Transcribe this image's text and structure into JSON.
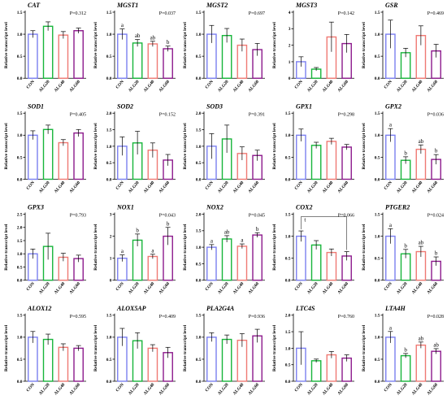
{
  "colors": {
    "CON": "#7b7ff0",
    "ALG20": "#17b53a",
    "ALG40": "#ef7a74",
    "ALG60": "#8c1a8c"
  },
  "chart_data": [
    {
      "type": "bar",
      "title": "CAT",
      "pvalue": "P=0.312",
      "ylabel": "Relative transcript level",
      "categories": [
        "CON",
        "ALG20",
        "ALG40",
        "ALG60"
      ],
      "values": [
        1.0,
        1.18,
        0.98,
        1.08
      ],
      "errors": [
        0.08,
        0.1,
        0.08,
        0.06
      ],
      "ylim": [
        0,
        1.5
      ],
      "yticks": [
        "0.0",
        "0.5",
        "1.0",
        "1.5"
      ],
      "letters": [
        "",
        "",
        "",
        ""
      ]
    },
    {
      "type": "bar",
      "title": "MGST1",
      "pvalue": "P=0.037",
      "ylabel": "Relative transcript level",
      "categories": [
        "CON",
        "ALG20",
        "ALG40",
        "ALG60"
      ],
      "values": [
        1.0,
        0.8,
        0.78,
        0.67
      ],
      "errors": [
        0.12,
        0.08,
        0.06,
        0.06
      ],
      "ylim": [
        0,
        1.5
      ],
      "yticks": [
        "0.0",
        "0.5",
        "1.0",
        "1.5"
      ],
      "letters": [
        "a",
        "ab",
        "ab",
        "b"
      ]
    },
    {
      "type": "bar",
      "title": "MGST2",
      "pvalue": "P=0.697",
      "ylabel": "Relative transcript level",
      "categories": [
        "CON",
        "ALG20",
        "ALG40",
        "ALG60"
      ],
      "values": [
        1.0,
        0.97,
        0.75,
        0.65
      ],
      "errors": [
        0.2,
        0.16,
        0.14,
        0.14
      ],
      "ylim": [
        0,
        1.5
      ],
      "yticks": [
        "0.0",
        "0.5",
        "1.0",
        "1.5"
      ],
      "letters": [
        "",
        "",
        "",
        ""
      ]
    },
    {
      "type": "bar",
      "title": "MGST3",
      "pvalue": "P=0.142",
      "ylabel": "Relative transcript level",
      "categories": [
        "CON",
        "ALG20",
        "ALG40",
        "ALG60"
      ],
      "values": [
        1.0,
        0.55,
        2.5,
        2.1
      ],
      "errors": [
        0.3,
        0.1,
        0.9,
        0.55
      ],
      "ylim": [
        0,
        4
      ],
      "yticks": [
        "0",
        "1",
        "2",
        "3",
        "4"
      ],
      "letters": [
        "",
        "",
        "",
        ""
      ]
    },
    {
      "type": "bar",
      "title": "GSR",
      "pvalue": "P=0.469",
      "ylabel": "Relative transcript level",
      "categories": [
        "CON",
        "ALG20",
        "ALG40",
        "ALG60"
      ],
      "values": [
        1.0,
        0.58,
        0.97,
        0.62
      ],
      "errors": [
        0.32,
        0.1,
        0.22,
        0.15
      ],
      "ylim": [
        0,
        1.5
      ],
      "yticks": [
        "0.0",
        "0.5",
        "1.0",
        "1.5"
      ],
      "letters": [
        "",
        "",
        "",
        ""
      ]
    },
    {
      "type": "bar",
      "title": "SOD1",
      "pvalue": "P=0.405",
      "ylabel": "Relative transcript level",
      "categories": [
        "CON",
        "ALG20",
        "ALG40",
        "ALG60"
      ],
      "values": [
        1.0,
        1.13,
        0.83,
        1.05
      ],
      "errors": [
        0.1,
        0.1,
        0.07,
        0.08
      ],
      "ylim": [
        0,
        1.5
      ],
      "yticks": [
        "0.0",
        "0.5",
        "1.0",
        "1.5"
      ],
      "letters": [
        "",
        "",
        "",
        ""
      ]
    },
    {
      "type": "bar",
      "title": "SOD2",
      "pvalue": "P=0.152",
      "ylabel": "Relative transcript level",
      "categories": [
        "CON",
        "ALG20",
        "ALG40",
        "ALG60"
      ],
      "values": [
        1.0,
        1.1,
        0.88,
        0.58
      ],
      "errors": [
        0.28,
        0.35,
        0.22,
        0.17
      ],
      "ylim": [
        0,
        2.0
      ],
      "yticks": [
        "0.0",
        "0.5",
        "1.0",
        "1.5",
        "2.0"
      ],
      "letters": [
        "",
        "",
        "",
        ""
      ]
    },
    {
      "type": "bar",
      "title": "SOD3",
      "pvalue": "P=0.391",
      "ylabel": "Relative transcript level",
      "categories": [
        "CON",
        "ALG20",
        "ALG40",
        "ALG60"
      ],
      "values": [
        1.0,
        1.22,
        0.78,
        0.72
      ],
      "errors": [
        0.38,
        0.42,
        0.2,
        0.16
      ],
      "ylim": [
        0,
        2.0
      ],
      "yticks": [
        "0.0",
        "0.5",
        "1.0",
        "1.5",
        "2.0"
      ],
      "letters": [
        "",
        "",
        "",
        ""
      ]
    },
    {
      "type": "bar",
      "title": "GPX1",
      "pvalue": "P=0.298",
      "ylabel": "Relative transcript level",
      "categories": [
        "CON",
        "ALG20",
        "ALG40",
        "ALG60"
      ],
      "values": [
        1.0,
        0.77,
        0.86,
        0.73
      ],
      "errors": [
        0.14,
        0.07,
        0.07,
        0.06
      ],
      "ylim": [
        0,
        1.5
      ],
      "yticks": [
        "0.0",
        "0.5",
        "1.0",
        "1.5"
      ],
      "letters": [
        "",
        "",
        "",
        ""
      ]
    },
    {
      "type": "bar",
      "title": "GPX2",
      "pvalue": "P=0.036",
      "ylabel": "Relative transcript level",
      "categories": [
        "CON",
        "ALG20",
        "ALG40",
        "ALG60"
      ],
      "values": [
        1.0,
        0.43,
        0.68,
        0.45
      ],
      "errors": [
        0.15,
        0.08,
        0.1,
        0.11
      ],
      "ylim": [
        0,
        1.5
      ],
      "yticks": [
        "0.0",
        "0.5",
        "1.0",
        "1.5"
      ],
      "letters": [
        "a",
        "b",
        "ab",
        "b"
      ]
    },
    {
      "type": "bar",
      "title": "GPX3",
      "pvalue": "P=0.793",
      "ylabel": "Relative transcript level",
      "categories": [
        "CON",
        "ALG20",
        "ALG40",
        "ALG60"
      ],
      "values": [
        1.0,
        1.28,
        0.87,
        0.82
      ],
      "errors": [
        0.18,
        0.5,
        0.15,
        0.13
      ],
      "ylim": [
        0,
        2.5
      ],
      "yticks": [
        "0.0",
        "0.5",
        "1.0",
        "1.5",
        "2.0",
        "2.5"
      ],
      "letters": [
        "",
        "",
        "",
        ""
      ]
    },
    {
      "type": "bar",
      "title": "NOX1",
      "pvalue": "P=0.043",
      "ylabel": "Relative transcript level",
      "categories": [
        "CON",
        "ALG20",
        "ALG40",
        "ALG60"
      ],
      "values": [
        1.0,
        1.82,
        1.08,
        2.0
      ],
      "errors": [
        0.15,
        0.28,
        0.1,
        0.4
      ],
      "ylim": [
        0,
        3
      ],
      "yticks": [
        "0",
        "1",
        "2",
        "3"
      ],
      "letters": [
        "a",
        "b",
        "a",
        "b"
      ]
    },
    {
      "type": "bar",
      "title": "NOX2",
      "pvalue": "P=0.045",
      "ylabel": "Relative transcript level",
      "categories": [
        "CON",
        "ALG20",
        "ALG40",
        "ALG60"
      ],
      "values": [
        1.0,
        1.25,
        1.03,
        1.37
      ],
      "errors": [
        0.08,
        0.1,
        0.07,
        0.07
      ],
      "ylim": [
        0,
        2.0
      ],
      "yticks": [
        "0.0",
        "0.5",
        "1.0",
        "1.5",
        "2.0"
      ],
      "letters": [
        "a",
        "ab",
        "a",
        "b"
      ]
    },
    {
      "type": "bar",
      "title": "COX2",
      "pvalue": "P=0.066",
      "ylabel": "Relative transcript level",
      "categories": [
        "CON",
        "ALG20",
        "ALG40",
        "ALG60"
      ],
      "values": [
        1.0,
        0.8,
        0.63,
        0.55
      ],
      "errors": [
        0.12,
        0.1,
        0.08,
        0.1
      ],
      "ylim": [
        0,
        1.5
      ],
      "yticks": [
        "0.0",
        "0.5",
        "1.0",
        "1.5"
      ],
      "letters": [
        "",
        "",
        "",
        ""
      ],
      "bracket_label": "t"
    },
    {
      "type": "bar",
      "title": "PTGER2",
      "pvalue": "P=0.024",
      "ylabel": "Relative transcript level",
      "categories": [
        "CON",
        "ALG20",
        "ALG40",
        "ALG60"
      ],
      "values": [
        1.0,
        0.6,
        0.65,
        0.43
      ],
      "errors": [
        0.17,
        0.1,
        0.12,
        0.1
      ],
      "ylim": [
        0,
        1.5
      ],
      "yticks": [
        "0.0",
        "0.5",
        "1.0",
        "1.5"
      ],
      "letters": [
        "a",
        "b",
        "ab",
        "b"
      ]
    },
    {
      "type": "bar",
      "title": "ALOX12",
      "pvalue": "P=0.595",
      "ylabel": "Relative transcript level",
      "categories": [
        "CON",
        "ALG20",
        "ALG40",
        "ALG60"
      ],
      "values": [
        1.0,
        0.95,
        0.77,
        0.75
      ],
      "errors": [
        0.13,
        0.12,
        0.08,
        0.06
      ],
      "ylim": [
        0,
        1.5
      ],
      "yticks": [
        "0.0",
        "0.5",
        "1.0",
        "1.5"
      ],
      "letters": [
        "",
        "",
        "",
        ""
      ]
    },
    {
      "type": "bar",
      "title": "ALOX5AP",
      "pvalue": "P=0.409",
      "ylabel": "Relative transcript level",
      "categories": [
        "CON",
        "ALG20",
        "ALG40",
        "ALG60"
      ],
      "values": [
        1.0,
        0.92,
        0.75,
        0.65
      ],
      "errors": [
        0.2,
        0.18,
        0.08,
        0.12
      ],
      "ylim": [
        0,
        1.5
      ],
      "yticks": [
        "0.0",
        "0.5",
        "1.0",
        "1.5"
      ],
      "letters": [
        "",
        "",
        "",
        ""
      ]
    },
    {
      "type": "bar",
      "title": "PLA2G4A",
      "pvalue": "P=0.936",
      "ylabel": "Relative transcript level",
      "categories": [
        "CON",
        "ALG20",
        "ALG40",
        "ALG60"
      ],
      "values": [
        1.0,
        0.95,
        0.93,
        1.03
      ],
      "errors": [
        0.1,
        0.1,
        0.15,
        0.15
      ],
      "ylim": [
        0,
        1.5
      ],
      "yticks": [
        "0.0",
        "0.5",
        "1.0",
        "1.5"
      ],
      "letters": [
        "",
        "",
        "",
        ""
      ]
    },
    {
      "type": "bar",
      "title": "LTC4S",
      "pvalue": "P=0.760",
      "ylabel": "Relative transcript level",
      "categories": [
        "CON",
        "ALG20",
        "ALG40",
        "ALG60"
      ],
      "values": [
        1.0,
        0.62,
        0.8,
        0.7
      ],
      "errors": [
        0.5,
        0.05,
        0.1,
        0.1
      ],
      "ylim": [
        0,
        2.0
      ],
      "yticks": [
        "0.0",
        "0.5",
        "1.0",
        "1.5",
        "2.0"
      ],
      "letters": [
        "",
        "",
        "",
        ""
      ]
    },
    {
      "type": "bar",
      "title": "LTA4H",
      "pvalue": "P=0.028",
      "ylabel": "Relative transcript level",
      "categories": [
        "CON",
        "ALG20",
        "ALG40",
        "ALG60"
      ],
      "values": [
        1.0,
        0.58,
        0.82,
        0.68
      ],
      "errors": [
        0.13,
        0.05,
        0.07,
        0.06
      ],
      "ylim": [
        0,
        1.5
      ],
      "yticks": [
        "0.0",
        "0.5",
        "1.0",
        "1.5"
      ],
      "letters": [
        "a",
        "b",
        "ab",
        "ab"
      ]
    }
  ]
}
